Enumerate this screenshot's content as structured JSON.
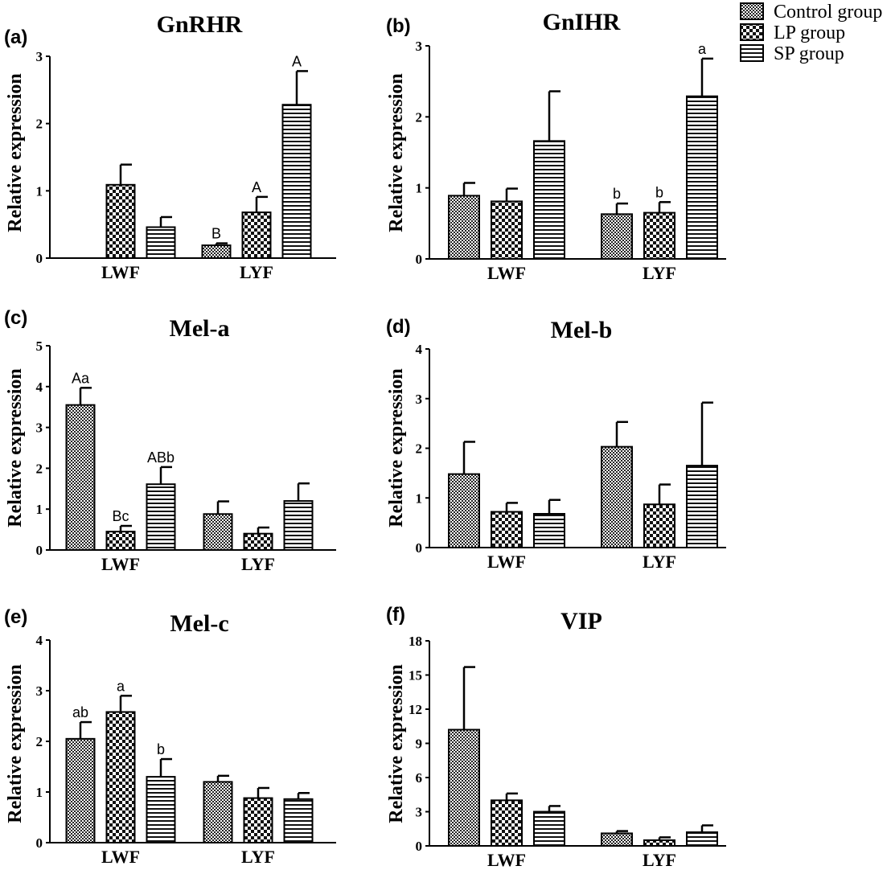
{
  "legend": {
    "items": [
      {
        "label": "Control group",
        "pattern": "dense"
      },
      {
        "label": "LP group",
        "pattern": "checker"
      },
      {
        "label": "SP group",
        "pattern": "hstripe"
      }
    ]
  },
  "chart_data": [
    {
      "type": "bar",
      "panel_label": "(a)",
      "title": "GnRHR",
      "xlabel": "",
      "ylabel": "Relative expression",
      "ylim": [
        0,
        3
      ],
      "yticks": [
        0,
        1,
        2,
        3
      ],
      "categories": [
        "LWF",
        "LYF"
      ],
      "series": [
        {
          "name": "Control group",
          "values": [
            null,
            0.19
          ],
          "errors": [
            null,
            0.03
          ],
          "labels": [
            null,
            "B"
          ]
        },
        {
          "name": "LP group",
          "values": [
            1.09,
            0.68
          ],
          "errors": [
            0.3,
            0.23
          ],
          "labels": [
            null,
            "A"
          ]
        },
        {
          "name": "SP group",
          "values": [
            0.46,
            2.28
          ],
          "errors": [
            0.15,
            0.5
          ],
          "labels": [
            null,
            "A"
          ]
        }
      ]
    },
    {
      "type": "bar",
      "panel_label": "(b)",
      "title": "GnIHR",
      "xlabel": "",
      "ylabel": "Relative expression",
      "ylim": [
        0,
        3
      ],
      "yticks": [
        0,
        1,
        2,
        3
      ],
      "categories": [
        "LWF",
        "LYF"
      ],
      "series": [
        {
          "name": "Control group",
          "values": [
            0.89,
            0.63
          ],
          "errors": [
            0.18,
            0.15
          ],
          "labels": [
            null,
            "b"
          ]
        },
        {
          "name": "LP group",
          "values": [
            0.81,
            0.65
          ],
          "errors": [
            0.18,
            0.15
          ],
          "labels": [
            null,
            "b"
          ]
        },
        {
          "name": "SP group",
          "values": [
            1.66,
            2.29
          ],
          "errors": [
            0.7,
            0.53
          ],
          "labels": [
            null,
            "a"
          ]
        }
      ]
    },
    {
      "type": "bar",
      "panel_label": "(c)",
      "title": "Mel-a",
      "xlabel": "",
      "ylabel": "Relative expression",
      "ylim": [
        0,
        5
      ],
      "yticks": [
        0,
        1,
        2,
        3,
        4,
        5
      ],
      "categories": [
        "LWF",
        "LYF"
      ],
      "series": [
        {
          "name": "Control group",
          "values": [
            3.55,
            0.88
          ],
          "errors": [
            0.42,
            0.31
          ],
          "labels": [
            "Aa",
            null
          ]
        },
        {
          "name": "LP group",
          "values": [
            0.45,
            0.4
          ],
          "errors": [
            0.14,
            0.15
          ],
          "labels": [
            "Bc",
            null
          ]
        },
        {
          "name": "SP group",
          "values": [
            1.61,
            1.2
          ],
          "errors": [
            0.42,
            0.43
          ],
          "labels": [
            "ABb",
            null
          ]
        }
      ]
    },
    {
      "type": "bar",
      "panel_label": "(d)",
      "title": "Mel-b",
      "xlabel": "",
      "ylabel": "Relative expression",
      "ylim": [
        0,
        4
      ],
      "yticks": [
        0,
        1,
        2,
        3,
        4
      ],
      "categories": [
        "LWF",
        "LYF"
      ],
      "series": [
        {
          "name": "Control group",
          "values": [
            1.48,
            2.03
          ],
          "errors": [
            0.65,
            0.5
          ],
          "labels": [
            null,
            null
          ]
        },
        {
          "name": "LP group",
          "values": [
            0.72,
            0.87
          ],
          "errors": [
            0.18,
            0.4
          ],
          "labels": [
            null,
            null
          ]
        },
        {
          "name": "SP group",
          "values": [
            0.68,
            1.65
          ],
          "errors": [
            0.28,
            1.27
          ],
          "labels": [
            null,
            null
          ]
        }
      ]
    },
    {
      "type": "bar",
      "panel_label": "(e)",
      "title": "Mel-c",
      "xlabel": "",
      "ylabel": "Relative expression",
      "ylim": [
        0,
        4
      ],
      "yticks": [
        0,
        1,
        2,
        3,
        4
      ],
      "categories": [
        "LWF",
        "LYF"
      ],
      "series": [
        {
          "name": "Control group",
          "values": [
            2.05,
            1.2
          ],
          "errors": [
            0.33,
            0.12
          ],
          "labels": [
            "ab",
            null
          ]
        },
        {
          "name": "LP group",
          "values": [
            2.58,
            0.88
          ],
          "errors": [
            0.32,
            0.2
          ],
          "labels": [
            "a",
            null
          ]
        },
        {
          "name": "SP group",
          "values": [
            1.3,
            0.86
          ],
          "errors": [
            0.35,
            0.12
          ],
          "labels": [
            "b",
            null
          ]
        }
      ]
    },
    {
      "type": "bar",
      "panel_label": "(f)",
      "title": "VIP",
      "xlabel": "",
      "ylabel": "Relative expression",
      "ylim": [
        0,
        18
      ],
      "yticks": [
        0,
        3,
        6,
        9,
        12,
        15,
        18
      ],
      "categories": [
        "LWF",
        "LYF"
      ],
      "series": [
        {
          "name": "Control group",
          "values": [
            10.2,
            1.1
          ],
          "errors": [
            5.5,
            0.2
          ],
          "labels": [
            null,
            null
          ]
        },
        {
          "name": "LP group",
          "values": [
            4.0,
            0.5
          ],
          "errors": [
            0.6,
            0.25
          ],
          "labels": [
            null,
            null
          ]
        },
        {
          "name": "SP group",
          "values": [
            3.0,
            1.2
          ],
          "errors": [
            0.5,
            0.6
          ],
          "labels": [
            null,
            null
          ]
        }
      ]
    }
  ]
}
